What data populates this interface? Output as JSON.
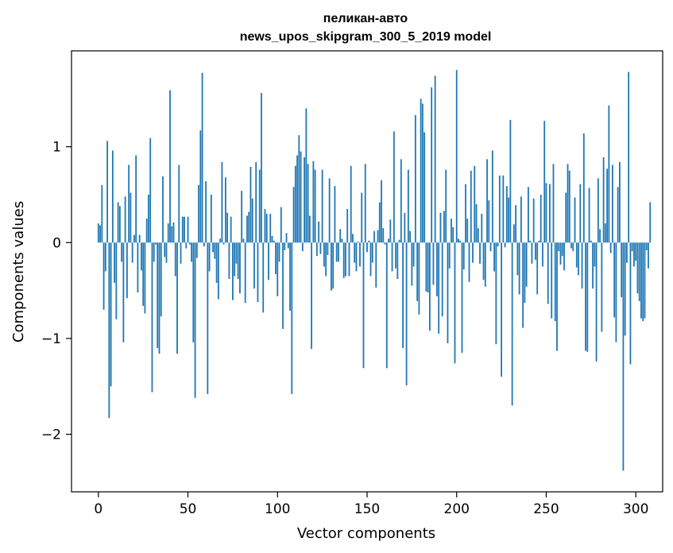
{
  "chart_data": {
    "type": "bar",
    "title_line1": "пеликан-авто",
    "title_line2": "news_upos_skipgram_300_5_2019 model",
    "xlabel": "Vector components",
    "ylabel": "Components values",
    "xlim": [
      -15,
      315
    ],
    "ylim": [
      -2.6,
      2.0
    ],
    "xticks": [
      0,
      50,
      100,
      150,
      200,
      250,
      300
    ],
    "yticks": [
      -2,
      -1,
      0,
      1
    ],
    "xtick_labels": [
      "0",
      "50",
      "100",
      "150",
      "200",
      "250",
      "300"
    ],
    "ytick_labels": [
      "−2",
      "−1",
      "0",
      "1"
    ],
    "bar_color": "#1f77b4",
    "grid": false,
    "values": [
      0.2,
      0.18,
      0.6,
      -0.7,
      -0.3,
      1.06,
      -1.83,
      -1.5,
      0.96,
      -0.42,
      -0.8,
      0.42,
      0.38,
      -0.2,
      -1.04,
      0.48,
      -0.58,
      0.81,
      0.52,
      -0.21,
      0.08,
      0.91,
      -0.52,
      0.08,
      -0.29,
      -0.66,
      -0.74,
      0.25,
      0.5,
      1.09,
      -1.56,
      -0.2,
      -0.02,
      -1.1,
      -1.16,
      -0.77,
      0.69,
      -0.15,
      -0.21,
      0.2,
      1.59,
      0.17,
      0.21,
      -0.35,
      -1.16,
      0.81,
      -0.22,
      0.27,
      0.27,
      -0.06,
      0.27,
      -0.02,
      -0.2,
      -1.04,
      -1.62,
      -0.16,
      0.6,
      1.17,
      1.77,
      -0.04,
      0.64,
      -1.58,
      -0.3,
      0.5,
      -0.1,
      -0.17,
      -0.42,
      -0.59,
      0.04,
      0.84,
      -0.02,
      0.68,
      0.31,
      -0.38,
      0.27,
      -0.6,
      -0.35,
      -0.22,
      -0.38,
      -0.53,
      0.54,
      0.04,
      -0.63,
      0.28,
      0.32,
      0.79,
      0.46,
      -0.48,
      0.84,
      -0.62,
      0.76,
      1.56,
      -0.73,
      0.35,
      0.3,
      -0.39,
      0.3,
      0.07,
      0.02,
      -0.33,
      -0.56,
      -0.2,
      0.37,
      -0.9,
      -0.08,
      0.1,
      -0.06,
      -0.71,
      -1.58,
      0.58,
      0.8,
      0.91,
      1.12,
      0.95,
      -0.09,
      0.89,
      1.4,
      0.82,
      0.28,
      -1.11,
      0.85,
      0.76,
      -0.14,
      0.22,
      -0.12,
      0.76,
      -0.25,
      -0.35,
      -0.13,
      0.67,
      -0.5,
      -0.48,
      0.59,
      -0.2,
      -0.2,
      0.14,
      0.04,
      -0.37,
      -0.35,
      0.35,
      -0.35,
      0.8,
      0.09,
      -0.21,
      -0.3,
      0.01,
      -0.25,
      0.52,
      -1.31,
      0.82,
      -0.1,
      0.02,
      -0.35,
      -0.21,
      0.12,
      -0.47,
      0.13,
      0.42,
      0.65,
      0.15,
      -0.02,
      -1.31,
      0.04,
      0.24,
      -0.3,
      1.16,
      -0.27,
      -0.38,
      0.03,
      0.87,
      -1.1,
      0.31,
      -1.49,
      0.76,
      0.12,
      -0.45,
      -0.25,
      1.33,
      -0.61,
      -0.75,
      1.5,
      1.45,
      1.15,
      -0.51,
      -0.52,
      -0.92,
      1.62,
      -0.44,
      1.74,
      -0.56,
      -0.95,
      0.31,
      -0.77,
      0.33,
      0.76,
      -1.05,
      -0.27,
      0.25,
      0.16,
      -1.26,
      1.8,
      0.04,
      0.02,
      -1.15,
      -0.28,
      0.61,
      0.25,
      -0.41,
      0.75,
      -0.21,
      0.8,
      0.4,
      0.15,
      -0.22,
      0.3,
      -0.39,
      -0.46,
      0.87,
      0.44,
      -0.09,
      0.96,
      -0.3,
      -1.06,
      -0.04,
      0.7,
      -1.4,
      0.7,
      -0.05,
      0.59,
      0.47,
      1.28,
      -1.7,
      0.19,
      0.39,
      -0.34,
      -0.54,
      0.48,
      -0.89,
      -0.63,
      -0.46,
      0.58,
      0.02,
      -0.22,
      0.46,
      -0.18,
      -0.54,
      0.02,
      0.5,
      -0.25,
      1.27,
      0.62,
      -0.64,
      0.61,
      -0.79,
      0.82,
      -0.82,
      -1.13,
      -0.09,
      -0.23,
      -0.14,
      -0.29,
      0.52,
      0.82,
      0.75,
      -0.06,
      -0.09,
      0.47,
      -0.26,
      -0.34,
      0.61,
      -0.48,
      1.14,
      -1.13,
      -1.14,
      0.57,
      0.02,
      -0.48,
      -0.25,
      -1.24,
      0.67,
      0.14,
      -0.93,
      0.89,
      0.2,
      0.77,
      1.43,
      -0.11,
      0.81,
      -0.78,
      -1.04,
      0.58,
      0.84,
      -0.57,
      -2.38,
      -0.97,
      -0.21,
      1.78,
      -1.27,
      -0.09,
      -0.25,
      -0.19,
      -0.53,
      -0.61,
      -0.79,
      -0.82,
      -0.79,
      -0.08,
      -0.27,
      0.42
    ]
  }
}
